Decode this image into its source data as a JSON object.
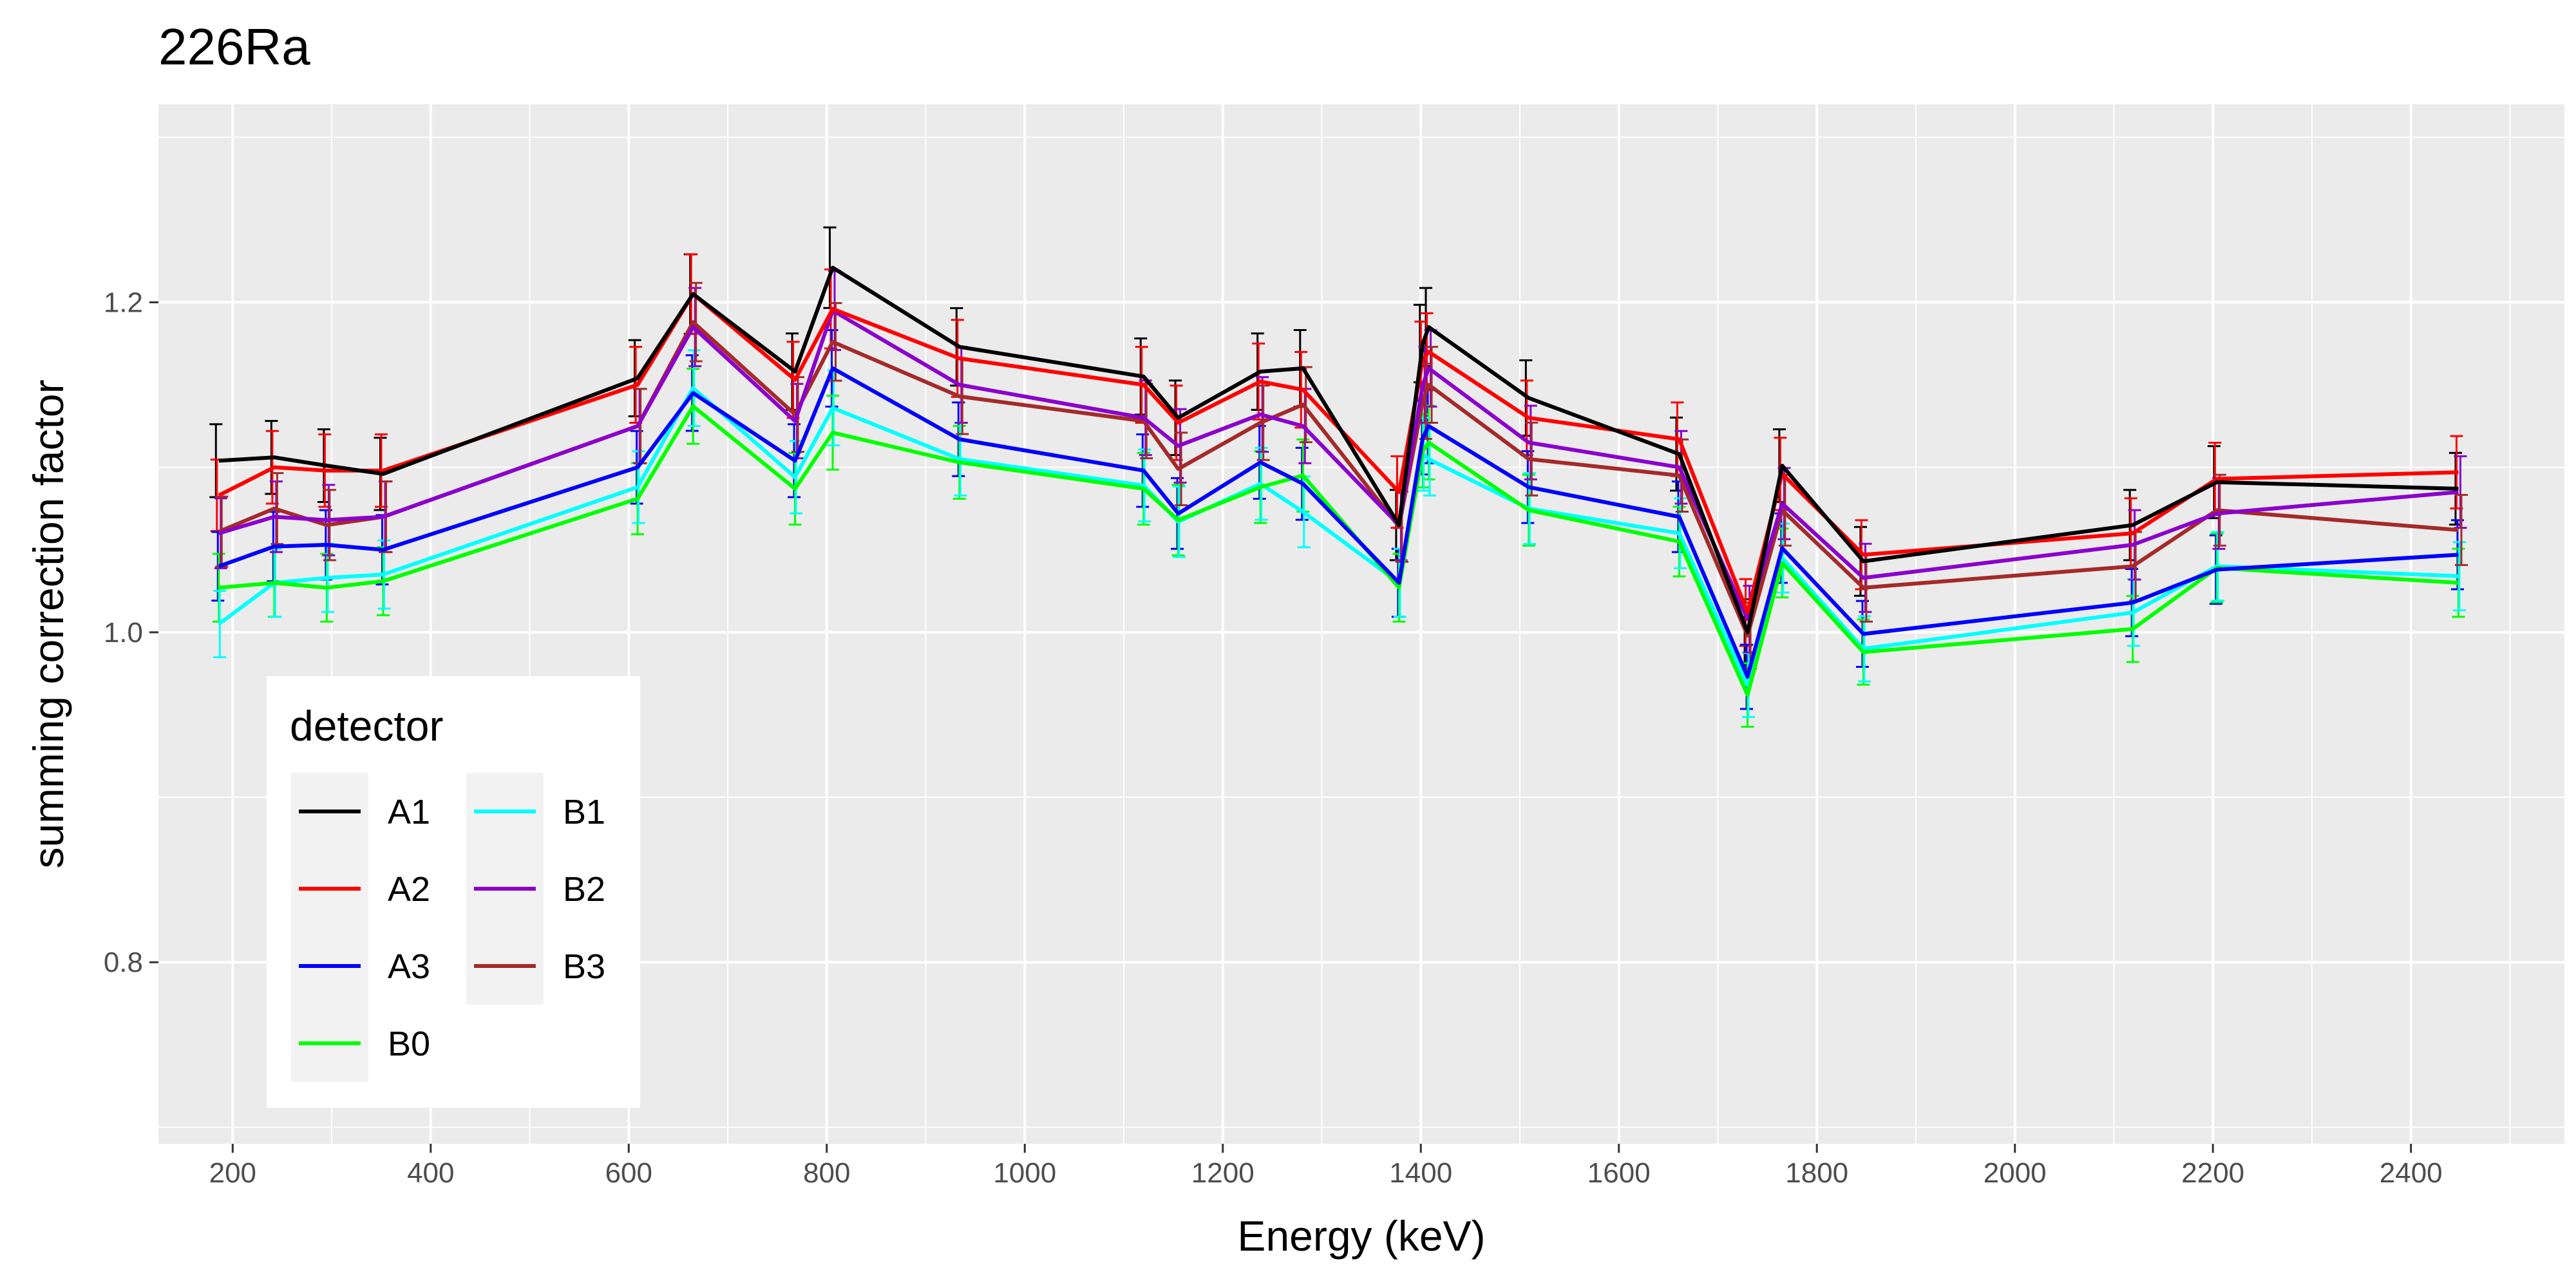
{
  "chart_data": {
    "type": "line",
    "title": "226Ra",
    "xlabel": "Energy (keV)",
    "ylabel": "summing correction factor",
    "xlim": [
      125,
      2555
    ],
    "ylim": [
      0.69,
      1.32
    ],
    "x_ticks": [
      200,
      400,
      600,
      800,
      1000,
      1200,
      1400,
      1600,
      1800,
      2000,
      2200,
      2400
    ],
    "y_ticks": [
      0.8,
      1.0,
      1.2
    ],
    "grid": true,
    "legend": {
      "title": "detector",
      "placement": "bottom-left"
    },
    "x": [
      186,
      242,
      295,
      352,
      609,
      665,
      768,
      806,
      934,
      1120,
      1155,
      1238,
      1281,
      1378,
      1402,
      1408,
      1509,
      1661,
      1730,
      1765,
      1847,
      2119,
      2204,
      2448
    ],
    "series": [
      {
        "name": "A1",
        "color": "#000000",
        "values": [
          1.104,
          1.106,
          1.101,
          1.096,
          1.154,
          1.205,
          1.158,
          1.221,
          1.173,
          1.155,
          1.13,
          1.158,
          1.16,
          1.065,
          1.175,
          1.185,
          1.142,
          1.108,
          1.0,
          1.101,
          1.043,
          1.065,
          1.091,
          1.087
        ]
      },
      {
        "name": "A2",
        "color": "#ff0000",
        "values": [
          1.083,
          1.1,
          1.098,
          1.098,
          1.15,
          1.205,
          1.153,
          1.196,
          1.166,
          1.15,
          1.127,
          1.152,
          1.147,
          1.085,
          1.165,
          1.17,
          1.13,
          1.117,
          1.012,
          1.096,
          1.047,
          1.06,
          1.093,
          1.097
        ]
      },
      {
        "name": "A3",
        "color": "#0000ff",
        "values": [
          1.04,
          1.052,
          1.053,
          1.05,
          1.1,
          1.145,
          1.104,
          1.16,
          1.117,
          1.098,
          1.072,
          1.103,
          1.09,
          1.03,
          1.118,
          1.125,
          1.088,
          1.07,
          0.973,
          1.051,
          0.999,
          1.018,
          1.038,
          1.047
        ]
      },
      {
        "name": "B0",
        "color": "#00ff00",
        "values": [
          1.027,
          1.03,
          1.027,
          1.031,
          1.081,
          1.137,
          1.087,
          1.121,
          1.103,
          1.087,
          1.068,
          1.088,
          1.095,
          1.027,
          1.11,
          1.115,
          1.074,
          1.055,
          0.962,
          1.042,
          0.988,
          1.002,
          1.039,
          1.03
        ]
      },
      {
        "name": "B1",
        "color": "#00ffff",
        "values": [
          1.005,
          1.03,
          1.033,
          1.035,
          1.088,
          1.148,
          1.094,
          1.136,
          1.105,
          1.089,
          1.067,
          1.09,
          1.073,
          1.03,
          1.108,
          1.105,
          1.075,
          1.06,
          0.968,
          1.045,
          0.99,
          1.012,
          1.04,
          1.034
        ]
      },
      {
        "name": "B2",
        "color": "#8b00cc",
        "values": [
          1.06,
          1.07,
          1.068,
          1.07,
          1.125,
          1.185,
          1.128,
          1.195,
          1.15,
          1.13,
          1.113,
          1.132,
          1.125,
          1.065,
          1.15,
          1.16,
          1.115,
          1.1,
          1.008,
          1.078,
          1.033,
          1.053,
          1.072,
          1.085
        ]
      },
      {
        "name": "B3",
        "color": "#a52a2a",
        "values": [
          1.061,
          1.075,
          1.065,
          1.07,
          1.125,
          1.188,
          1.132,
          1.176,
          1.143,
          1.128,
          1.099,
          1.127,
          1.138,
          1.064,
          1.14,
          1.15,
          1.105,
          1.095,
          0.998,
          1.074,
          1.027,
          1.04,
          1.074,
          1.062
        ]
      }
    ]
  }
}
